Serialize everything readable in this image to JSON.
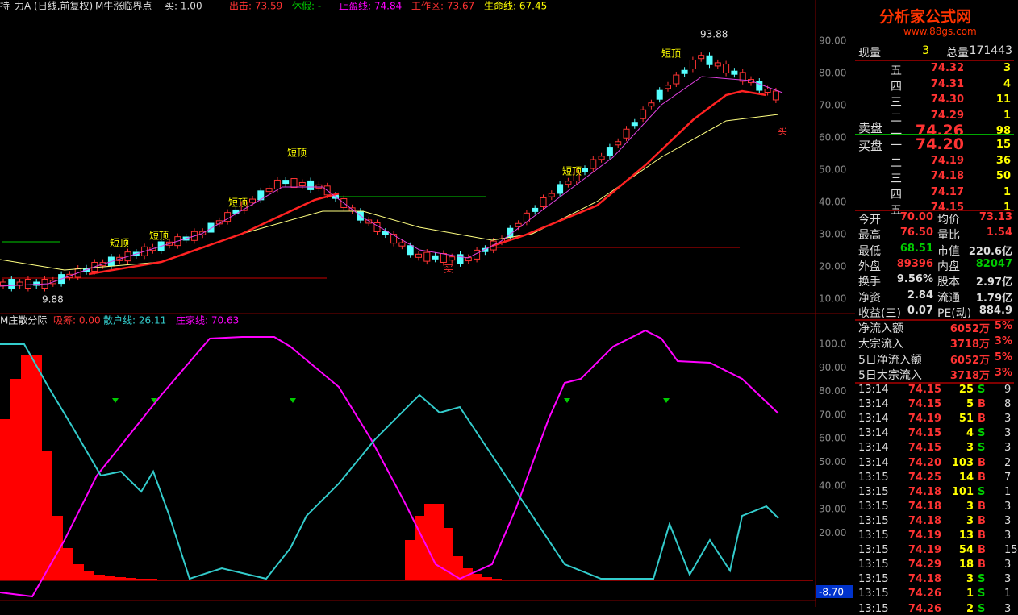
{
  "header": {
    "items": [
      "持",
      "力A (日线,前复权)",
      "M牛涨临界点",
      "买: 1.00",
      "出击: 73.59",
      "休假: -",
      "止盈线: 74.84",
      "工作区: 73.67",
      "生命线: 67.45"
    ]
  },
  "price_axis": [
    "90.00",
    "80.00",
    "70.00",
    "60.00",
    "50.00",
    "40.00",
    "30.00",
    "20.00",
    "10.00"
  ],
  "annotations": {
    "top_high": "93.88",
    "bottom_low": "9.88",
    "short_top": "短顶",
    "buy": "买"
  },
  "lower": {
    "items": [
      "M庄散分际",
      "吸筹: 0.00",
      "散户线: 26.11",
      "庄家线: 70.63"
    ],
    "axis": [
      "100.0",
      "90.00",
      "80.00",
      "70.00",
      "60.00",
      "50.00",
      "40.00",
      "30.00",
      "20.00"
    ],
    "current": "-8.70"
  },
  "logo": {
    "title": "分析家公式网",
    "url": "www.88gs.com"
  },
  "quote": {
    "volume": [
      "现量",
      "3",
      "总量",
      "171443"
    ],
    "sell_label": "卖盘",
    "buy_label": "买盘",
    "sell": [
      [
        "五",
        "74.32",
        "3"
      ],
      [
        "四",
        "74.31",
        "4"
      ],
      [
        "三",
        "74.30",
        "11"
      ],
      [
        "二",
        "74.29",
        "1"
      ],
      [
        "一",
        "74.26",
        "98"
      ]
    ],
    "buy": [
      [
        "一",
        "74.20",
        "15"
      ],
      [
        "二",
        "74.19",
        "36"
      ],
      [
        "三",
        "74.18",
        "50"
      ],
      [
        "四",
        "74.17",
        "1"
      ],
      [
        "五",
        "74.15",
        "1"
      ]
    ],
    "stats": [
      [
        "今开",
        "70.00",
        "均价",
        "73.13"
      ],
      [
        "最高",
        "76.50",
        "量比",
        "1.54"
      ],
      [
        "最低",
        "68.51",
        "市值",
        "220.6亿"
      ],
      [
        "外盘",
        "89396",
        "内盘",
        "82047"
      ],
      [
        "换手",
        "9.56%",
        "股本",
        "2.97亿"
      ],
      [
        "净资",
        "2.84",
        "流通",
        "1.79亿"
      ],
      [
        "收益(三)",
        "0.07",
        "PE(动)",
        "884.9"
      ]
    ],
    "flow": [
      [
        "净流入额",
        "6052万",
        "5%"
      ],
      [
        "大宗流入",
        "3718万",
        "3%"
      ],
      [
        "5日净流入额",
        "6052万",
        "5%"
      ],
      [
        "5日大宗流入",
        "3718万",
        "3%"
      ]
    ],
    "trades": [
      [
        "13:14",
        "74.15",
        "25",
        "S",
        "9"
      ],
      [
        "13:14",
        "74.15",
        "5",
        "B",
        "8"
      ],
      [
        "13:14",
        "74.19",
        "51",
        "B",
        "3"
      ],
      [
        "13:14",
        "74.15",
        "4",
        "S",
        "3"
      ],
      [
        "13:14",
        "74.15",
        "3",
        "S",
        "3"
      ],
      [
        "13:14",
        "74.20",
        "103",
        "B",
        "2"
      ],
      [
        "13:15",
        "74.25",
        "14",
        "B",
        "7"
      ],
      [
        "13:15",
        "74.18",
        "101",
        "S",
        "1"
      ],
      [
        "13:15",
        "74.18",
        "3",
        "B",
        "3"
      ],
      [
        "13:15",
        "74.18",
        "3",
        "B",
        "3"
      ],
      [
        "13:15",
        "74.19",
        "13",
        "B",
        "3"
      ],
      [
        "13:15",
        "74.19",
        "54",
        "B",
        "15"
      ],
      [
        "13:15",
        "74.29",
        "18",
        "B",
        "3"
      ],
      [
        "13:15",
        "74.18",
        "3",
        "S",
        "3"
      ],
      [
        "13:15",
        "74.26",
        "1",
        "S",
        "1"
      ],
      [
        "13:15",
        "74.26",
        "2",
        "S",
        "3"
      ]
    ]
  }
}
